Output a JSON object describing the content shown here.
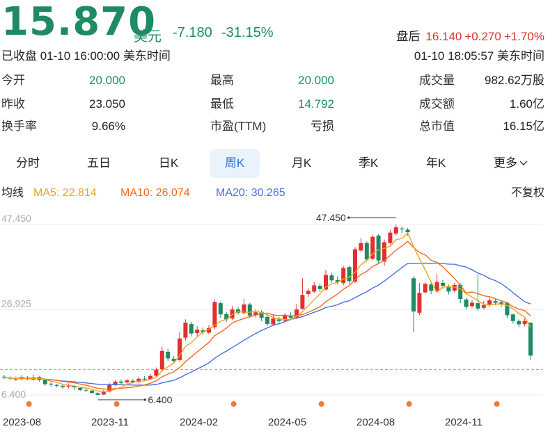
{
  "quote": {
    "price": "15.870",
    "currency": "美元",
    "change": "-7.180",
    "change_pct": "-31.15%",
    "after_hours_label": "盘后",
    "after_hours_price": "16.140",
    "after_hours_change": "+0.270",
    "after_hours_pct": "+1.70%",
    "closed_text": "已收盘 01-10 16:00:00 美东时间",
    "ah_time_text": "01-10 18:05:57 美东时间",
    "down_color": "#1e8b63",
    "up_color": "#e0302f"
  },
  "stats": {
    "open_label": "今开",
    "open_value": "20.000",
    "high_label": "最高",
    "high_value": "20.000",
    "volume_label": "成交量",
    "volume_value": "982.62万股",
    "prev_label": "昨收",
    "prev_value": "23.050",
    "low_label": "最低",
    "low_value": "14.792",
    "turnover_label": "成交额",
    "turnover_value": "1.60亿",
    "turnover_rate_label": "换手率",
    "turnover_rate_value": "9.66%",
    "pe_label": "市盈(TTM)",
    "pe_value": "亏损",
    "mcap_label": "总市值",
    "mcap_value": "16.15亿"
  },
  "tabs": {
    "items": [
      "分时",
      "五日",
      "日K",
      "周K",
      "月K",
      "季K",
      "年K",
      "更多"
    ],
    "active": "周K",
    "more_icon": "chevron-down-icon"
  },
  "ma": {
    "label": "均线",
    "ma5": "MA5: 22.814",
    "ma10": "MA10: 26.074",
    "ma20": "MA20: 30.265",
    "adjust": "不复权",
    "ma5_color": "#f0a21e",
    "ma10_color": "#f06a1e",
    "ma20_color": "#4a6fe0"
  },
  "chart_data": {
    "type": "candlestick",
    "y_ticks": [
      "47.450",
      "26.925",
      "6.400"
    ],
    "ylim": [
      6.4,
      47.45
    ],
    "x_ticks": [
      "2023-08",
      "2023-11",
      "2024-02",
      "2024-05",
      "2024-08",
      "2024-11"
    ],
    "annotations": {
      "max": "47.450",
      "min": "6.400"
    },
    "reference_price": 12.5,
    "candles": [
      [
        10.8,
        10.6,
        11.2,
        10.2
      ],
      [
        10.5,
        10.3,
        11.0,
        10.0
      ],
      [
        10.4,
        10.1,
        10.8,
        9.8
      ],
      [
        10.2,
        10.7,
        11.2,
        9.9
      ],
      [
        10.6,
        10.2,
        10.9,
        9.9
      ],
      [
        10.1,
        10.6,
        11.3,
        9.9
      ],
      [
        10.7,
        10.0,
        10.9,
        9.6
      ],
      [
        10.0,
        9.0,
        10.2,
        8.6
      ],
      [
        9.1,
        8.9,
        9.6,
        8.4
      ],
      [
        8.8,
        8.6,
        9.1,
        8.2
      ],
      [
        8.6,
        8.3,
        9.0,
        7.8
      ],
      [
        8.4,
        8.6,
        9.2,
        8.0
      ],
      [
        8.5,
        8.2,
        8.8,
        7.6
      ],
      [
        8.1,
        7.6,
        8.3,
        7.3
      ],
      [
        7.6,
        7.5,
        8.1,
        7.1
      ],
      [
        7.4,
        6.9,
        7.6,
        6.6
      ],
      [
        6.8,
        6.4,
        7.0,
        6.4
      ],
      [
        6.5,
        7.2,
        7.6,
        6.4
      ],
      [
        7.2,
        8.8,
        9.2,
        7.0
      ],
      [
        8.8,
        9.6,
        10.0,
        8.5
      ],
      [
        9.6,
        9.3,
        10.1,
        9.0
      ],
      [
        9.4,
        9.9,
        10.3,
        9.1
      ],
      [
        9.8,
        9.4,
        10.2,
        9.2
      ],
      [
        9.5,
        10.3,
        10.8,
        9.3
      ],
      [
        10.3,
        10.1,
        10.9,
        9.8
      ],
      [
        10.2,
        11.0,
        11.5,
        10.0
      ],
      [
        11.0,
        12.5,
        13.0,
        10.7
      ],
      [
        12.6,
        17.0,
        18.0,
        12.2
      ],
      [
        16.8,
        15.2,
        17.5,
        14.6
      ],
      [
        15.1,
        14.6,
        15.8,
        14.0
      ],
      [
        14.8,
        20.0,
        21.5,
        14.5
      ],
      [
        20.2,
        23.8,
        24.6,
        19.5
      ],
      [
        23.5,
        21.2,
        24.0,
        20.5
      ],
      [
        21.3,
        22.1,
        23.0,
        20.6
      ],
      [
        22.0,
        21.5,
        22.7,
        20.9
      ],
      [
        21.4,
        22.5,
        23.2,
        21.0
      ],
      [
        22.7,
        28.8,
        29.4,
        22.2
      ],
      [
        28.5,
        25.8,
        28.9,
        25.0
      ],
      [
        25.9,
        24.6,
        26.3,
        24.0
      ],
      [
        24.8,
        27.0,
        27.8,
        24.4
      ],
      [
        27.0,
        26.2,
        27.6,
        25.7
      ],
      [
        26.1,
        28.2,
        29.5,
        25.8
      ],
      [
        28.2,
        25.5,
        28.6,
        25.0
      ],
      [
        25.6,
        26.3,
        27.0,
        25.1
      ],
      [
        26.4,
        25.0,
        26.8,
        24.2
      ],
      [
        25.2,
        23.5,
        25.7,
        23.0
      ],
      [
        23.4,
        24.8,
        25.8,
        23.1
      ],
      [
        24.6,
        24.2,
        25.2,
        23.6
      ],
      [
        24.3,
        25.5,
        26.1,
        23.9
      ],
      [
        25.4,
        25.0,
        26.3,
        24.5
      ],
      [
        25.0,
        27.0,
        28.3,
        24.7
      ],
      [
        27.2,
        30.5,
        34.5,
        26.9
      ],
      [
        30.7,
        31.5,
        32.1,
        30.0
      ],
      [
        31.3,
        32.8,
        33.6,
        30.9
      ],
      [
        32.7,
        31.9,
        33.3,
        31.2
      ],
      [
        31.8,
        35.3,
        36.5,
        31.5
      ],
      [
        35.2,
        34.0,
        35.8,
        33.4
      ],
      [
        34.1,
        33.6,
        35.0,
        33.0
      ],
      [
        33.4,
        37.0,
        37.4,
        32.8
      ],
      [
        37.2,
        33.8,
        37.6,
        33.2
      ],
      [
        33.7,
        41.5,
        42.0,
        33.4
      ],
      [
        41.2,
        43.0,
        44.2,
        40.8
      ],
      [
        43.0,
        39.0,
        43.4,
        38.6
      ],
      [
        39.2,
        44.5,
        45.0,
        38.9
      ],
      [
        44.8,
        38.8,
        45.2,
        38.0
      ],
      [
        38.5,
        43.2,
        43.8,
        37.5
      ],
      [
        43.0,
        45.5,
        46.2,
        42.6
      ],
      [
        45.3,
        46.8,
        47.45,
        44.9
      ],
      [
        46.5,
        46.3,
        47.0,
        45.4
      ],
      [
        46.2,
        45.6,
        46.6,
        44.7
      ],
      [
        34.5,
        26.5,
        35.0,
        21.5
      ],
      [
        26.2,
        31.0,
        33.4,
        25.6
      ],
      [
        31.1,
        33.2,
        33.6,
        30.8
      ],
      [
        33.0,
        31.5,
        33.6,
        30.7
      ],
      [
        31.4,
        33.6,
        35.5,
        31.0
      ],
      [
        33.4,
        32.7,
        34.1,
        32.0
      ],
      [
        32.6,
        31.3,
        33.0,
        30.6
      ],
      [
        31.5,
        32.9,
        33.4,
        31.0
      ],
      [
        32.9,
        29.5,
        33.3,
        28.5
      ],
      [
        29.4,
        27.6,
        29.9,
        27.0
      ],
      [
        27.8,
        28.6,
        29.2,
        27.4
      ],
      [
        28.5,
        27.2,
        35.5,
        26.6
      ],
      [
        27.4,
        28.0,
        29.0,
        27.0
      ],
      [
        28.0,
        29.2,
        29.8,
        27.6
      ],
      [
        29.0,
        28.6,
        29.6,
        28.0
      ],
      [
        28.7,
        28.3,
        29.1,
        27.6
      ],
      [
        28.6,
        25.6,
        28.9,
        25.0
      ],
      [
        25.8,
        24.2,
        26.0,
        23.6
      ],
      [
        24.2,
        23.4,
        24.6,
        22.7
      ],
      [
        23.5,
        24.2,
        24.8,
        22.9
      ],
      [
        23.8,
        15.87,
        23.8,
        14.79
      ]
    ]
  }
}
